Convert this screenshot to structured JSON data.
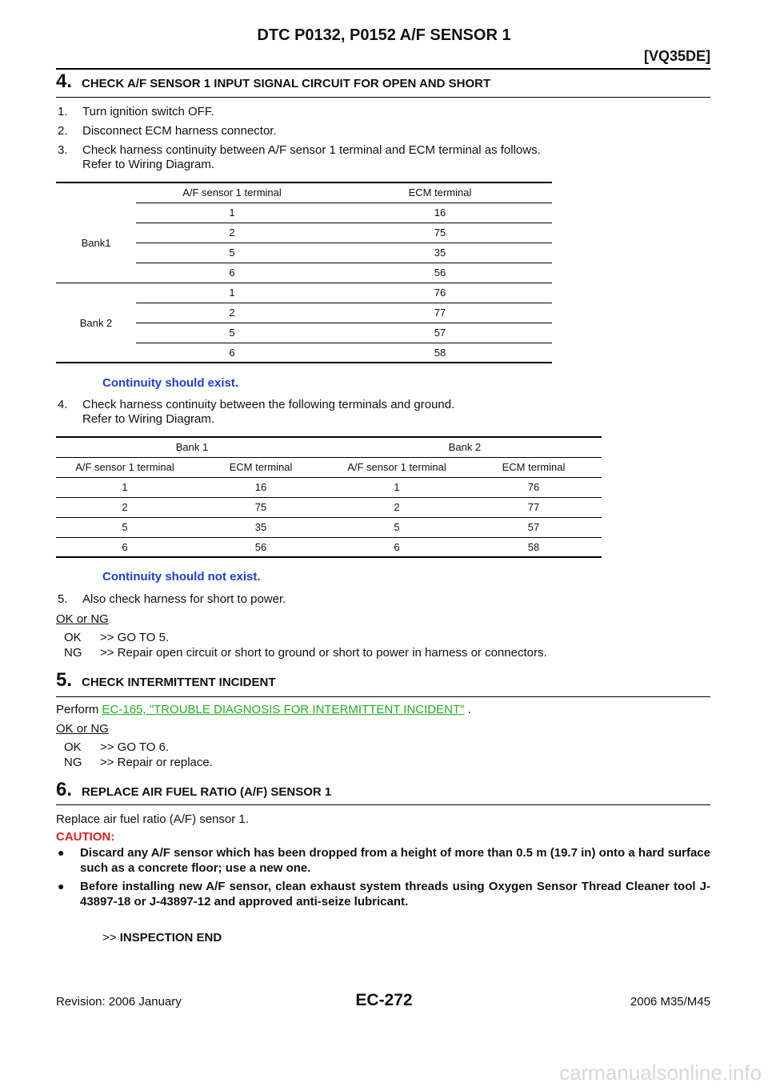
{
  "header": {
    "title": "DTC P0132, P0152 A/F SENSOR 1",
    "tag": "[VQ35DE]"
  },
  "step4": {
    "number": "4.",
    "heading": "CHECK A/F SENSOR 1 INPUT SIGNAL CIRCUIT FOR OPEN AND SHORT",
    "items": [
      {
        "num": "1.",
        "lines": [
          "Turn ignition switch OFF."
        ]
      },
      {
        "num": "2.",
        "lines": [
          "Disconnect ECM harness connector."
        ]
      },
      {
        "num": "3.",
        "lines": [
          "Check harness continuity between A/F sensor 1 terminal and ECM terminal as follows.",
          "Refer to Wiring Diagram."
        ]
      }
    ],
    "table1": {
      "columns": [
        "A/F sensor 1 terminal",
        "ECM terminal"
      ],
      "groups": [
        {
          "label": "Bank1",
          "rows": [
            [
              1,
              16
            ],
            [
              2,
              75
            ],
            [
              5,
              35
            ],
            [
              6,
              56
            ]
          ]
        },
        {
          "label": "Bank 2",
          "rows": [
            [
              1,
              76
            ],
            [
              2,
              77
            ],
            [
              5,
              57
            ],
            [
              6,
              58
            ]
          ]
        }
      ]
    },
    "result1": "Continuity should exist.",
    "item4": {
      "num": "4.",
      "lines": [
        "Check harness continuity between the following terminals and ground.",
        "Refer to Wiring Diagram."
      ]
    },
    "table2": {
      "groups": [
        "Bank 1",
        "Bank 2"
      ],
      "columns": [
        "A/F sensor 1 terminal",
        "ECM terminal",
        "A/F sensor 1 terminal",
        "ECM terminal"
      ],
      "rows": [
        [
          1,
          16,
          1,
          76
        ],
        [
          2,
          75,
          2,
          77
        ],
        [
          5,
          35,
          5,
          57
        ],
        [
          6,
          56,
          6,
          58
        ]
      ]
    },
    "result2": "Continuity should not exist.",
    "item5": {
      "num": "5.",
      "lines": [
        "Also check harness for short to power."
      ]
    },
    "ok_ng": "OK or NG",
    "outcomes": [
      {
        "code": "OK",
        "action": ">> GO TO 5."
      },
      {
        "code": "NG",
        "action": ">> Repair open circuit or short to ground or short to power in harness or connectors."
      }
    ]
  },
  "step5": {
    "number": "5.",
    "heading": "CHECK INTERMITTENT INCIDENT",
    "perform": {
      "prefix": "Perform",
      "link": "EC-165, \"TROUBLE DIAGNOSIS FOR INTERMITTENT INCIDENT\"",
      "suffix": "."
    },
    "ok_ng": "OK or NG",
    "outcomes": [
      {
        "code": "OK",
        "action": ">> GO TO 6."
      },
      {
        "code": "NG",
        "action": ">> Repair or replace."
      }
    ]
  },
  "step6": {
    "number": "6.",
    "heading": "REPLACE AIR FUEL RATIO (A/F) SENSOR 1",
    "text": "Replace air fuel ratio (A/F) sensor 1.",
    "caution": "CAUTION:",
    "bullets": [
      "Discard any A/F sensor which has been dropped from a height of more than 0.5 m (19.7 in) onto a hard surface such as a concrete floor; use a new one.",
      "Before installing new A/F sensor, clean exhaust system threads using Oxygen Sensor Thread Cleaner tool J-43897-18 or J-43897-12 and approved anti-seize lubricant."
    ],
    "end": {
      "prefix": ">>",
      "text": "INSPECTION END"
    }
  },
  "footer": {
    "revision": "Revision: 2006 January",
    "page": "EC-272",
    "model": "2006 M35/M45"
  },
  "watermark": "carmanualsonline.info"
}
